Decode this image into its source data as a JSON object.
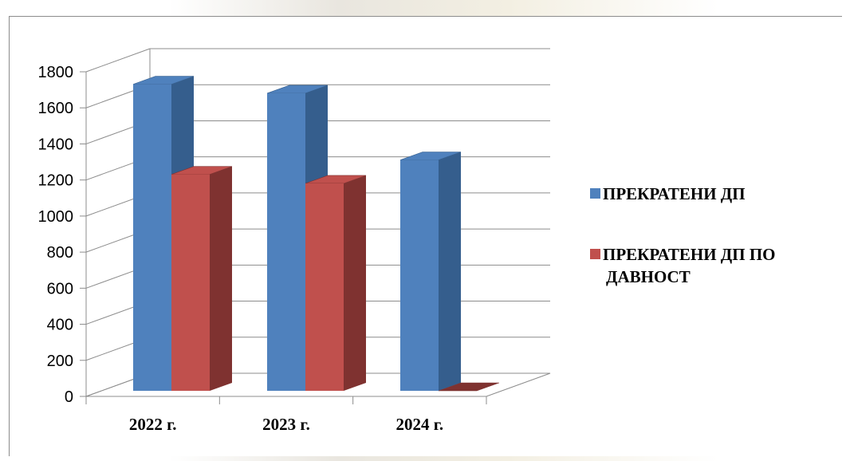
{
  "chart_data": {
    "type": "bar",
    "categories": [
      "2022 г.",
      "2023 г.",
      "2024 г."
    ],
    "series": [
      {
        "name": "ПРЕКРАТЕНИ ДП",
        "values": [
          1700,
          1650,
          1280
        ],
        "color": "#4F81BD",
        "side_color": "#355E8D"
      },
      {
        "name": "ПРЕКРАТЕНИ ДП  ПО ДАВНОСТ",
        "values": [
          1200,
          1150,
          0
        ],
        "color": "#C0504D",
        "side_color": "#7F3230"
      }
    ],
    "ylim": [
      0,
      1800
    ],
    "yticks": [
      "0",
      "200",
      "400",
      "600",
      "800",
      "1000",
      "1200",
      "1400",
      "1600",
      "1800"
    ],
    "grid": true,
    "legend": "right",
    "three_d": true
  },
  "legend": {
    "item1": "ПРЕКРАТЕНИ ДП",
    "item2_line1": "ПРЕКРАТЕНИ ДП  ПО",
    "item2_line2": "ДАВНОСТ"
  }
}
